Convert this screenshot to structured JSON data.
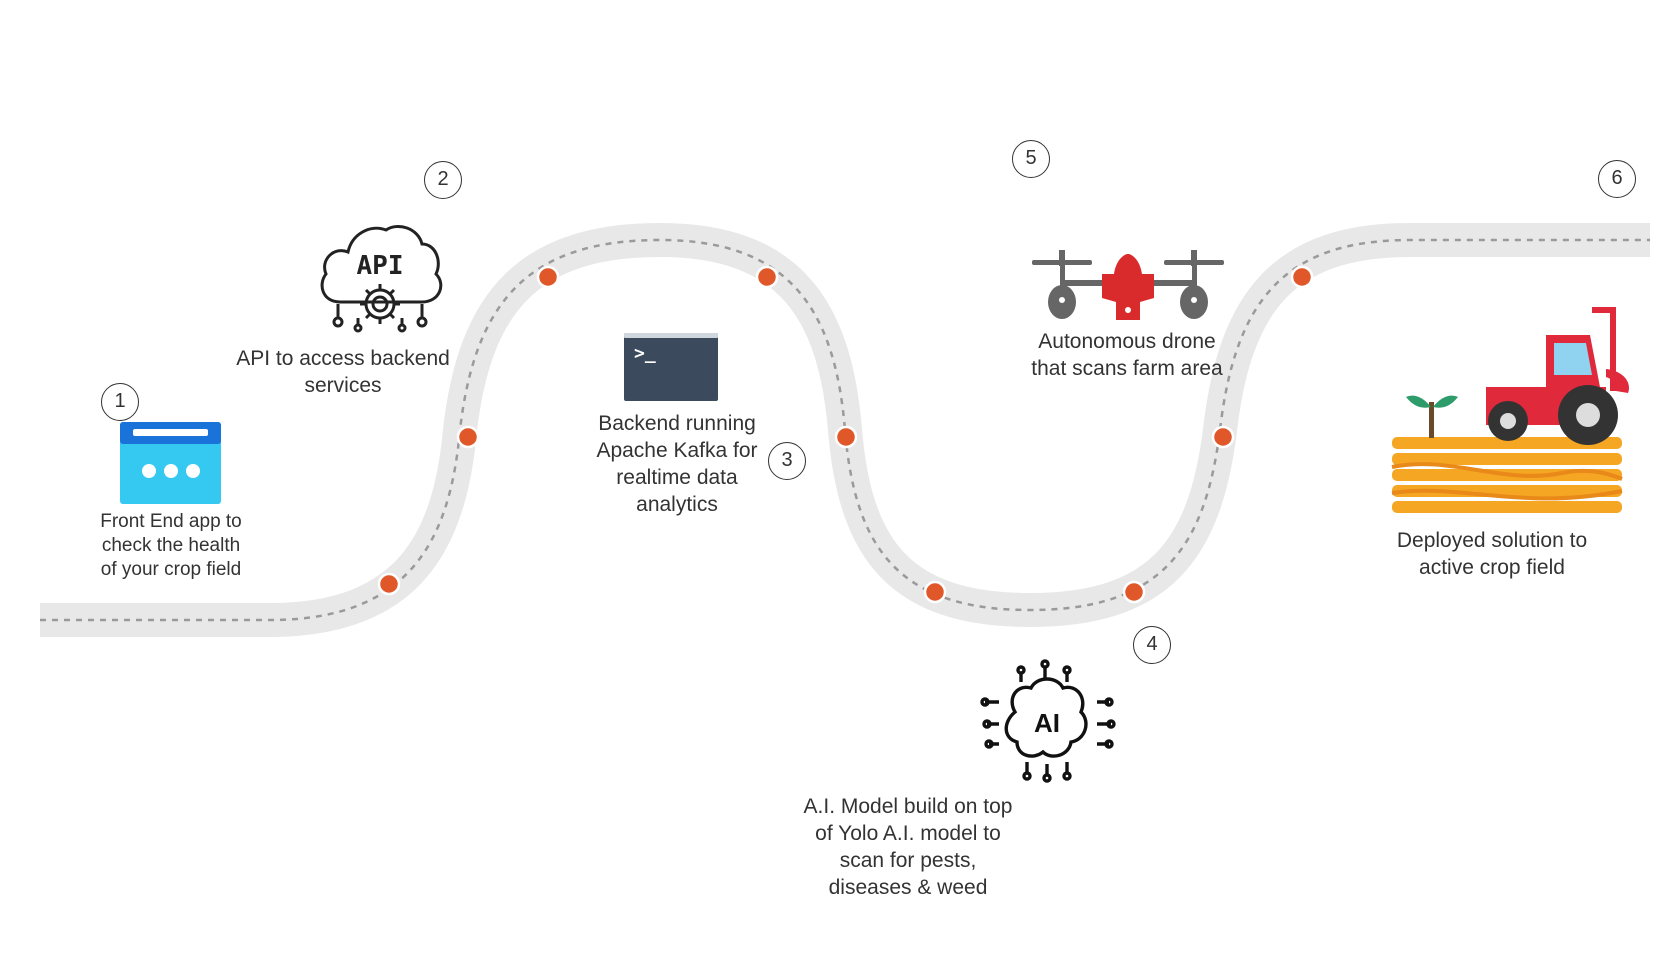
{
  "steps": [
    {
      "number": "1",
      "lines": [
        "Front End app to",
        "check the health",
        "of your crop field"
      ],
      "icon": "browser-window-icon"
    },
    {
      "number": "2",
      "lines": [
        "API to access backend",
        "services"
      ],
      "icon": "api-cloud-gear-icon"
    },
    {
      "number": "3",
      "lines": [
        "Backend running",
        "Apache Kafka for",
        "realtime data",
        "analytics"
      ],
      "icon": "terminal-icon"
    },
    {
      "number": "4",
      "lines": [
        "A.I. Model build on top",
        "of Yolo A.I. model to",
        "scan for pests,",
        "diseases & weed"
      ],
      "icon": "ai-brain-circuit-icon"
    },
    {
      "number": "5",
      "lines": [
        "Autonomous drone",
        "that scans farm area"
      ],
      "icon": "drone-icon"
    },
    {
      "number": "6",
      "lines": [
        "Deployed solution to",
        "active crop field"
      ],
      "icon": "tractor-field-icon"
    }
  ],
  "icon_glyphs": {
    "terminal_prompt": ">_",
    "api_text": "API",
    "ai_text": "AI"
  },
  "colors": {
    "road": "#e8e8e8",
    "road_dash": "#9a9a9a",
    "milestone": "#e0582a",
    "browser_blue": "#35c8f0",
    "browser_bar": "#1a73d9",
    "terminal": "#3b4a5c",
    "drone_red": "#d92b2b",
    "drone_gray": "#666666",
    "tractor_red": "#e02a3c",
    "field_orange": "#f5a623"
  }
}
